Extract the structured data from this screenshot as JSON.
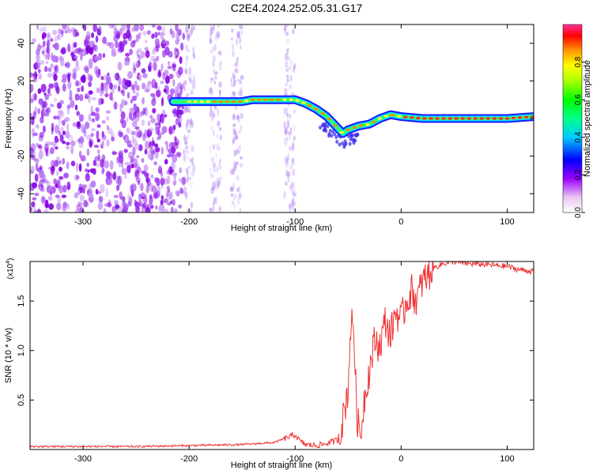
{
  "title": "C2E4.2024.252.05.31.G17",
  "chart_data": [
    {
      "type": "heatmap",
      "xlabel": "Height of straight line (km)",
      "ylabel": "Frequency (Hz)",
      "xlim": [
        -350,
        125
      ],
      "ylim": [
        -50,
        50
      ],
      "xticks": [
        -300,
        -200,
        -100,
        0,
        100
      ],
      "yticks": [
        -40,
        -20,
        0,
        20,
        40
      ],
      "colorbar": {
        "label": "Normalized spectral amplitude",
        "range": [
          0.0,
          1.0
        ],
        "ticks": [
          0.0,
          0.2,
          0.4,
          0.6,
          0.8
        ]
      },
      "ridge": {
        "x": [
          -215,
          -200,
          -180,
          -160,
          -150,
          -140,
          -120,
          -110,
          -100,
          -90,
          -80,
          -70,
          -60,
          -55,
          -50,
          -45,
          -40,
          -30,
          -20,
          -10,
          0,
          20,
          60,
          100,
          125
        ],
        "y": [
          9,
          9,
          9,
          9,
          9,
          10,
          10,
          10,
          10,
          8,
          5,
          1,
          -5,
          -8,
          -6,
          -5,
          -4,
          -3,
          0,
          2,
          1,
          0,
          0,
          0,
          1
        ]
      },
      "noise_region_x": [
        -350,
        -205
      ]
    },
    {
      "type": "line",
      "xlabel": "Height of straight line (km)",
      "ylabel": "SNR (10 * v/v)",
      "scale_label": "(x10",
      "scale_exp": "4",
      "xlim": [
        -350,
        125
      ],
      "ylim": [
        0.0,
        1.9
      ],
      "xticks": [
        -300,
        -200,
        -100,
        0,
        100
      ],
      "yticks": [
        0.5,
        1.0,
        1.5
      ],
      "ytick_labels": [
        "0.5",
        "1.0",
        "1.5"
      ],
      "series": [
        {
          "color": "#ee3333",
          "x": [
            -350,
            -300,
            -250,
            -200,
            -150,
            -120,
            -100,
            -95,
            -90,
            -80,
            -70,
            -60,
            -55,
            -52,
            -50,
            -48,
            -45,
            -42,
            -40,
            -38,
            -35,
            -30,
            -25,
            -20,
            -15,
            -10,
            -5,
            0,
            5,
            10,
            15,
            20,
            25,
            30,
            40,
            50,
            60,
            80,
            100,
            110,
            125
          ],
          "y": [
            0.03,
            0.03,
            0.03,
            0.04,
            0.05,
            0.07,
            0.15,
            0.08,
            0.05,
            0.04,
            0.06,
            0.1,
            0.3,
            0.5,
            0.6,
            1.2,
            1.3,
            0.4,
            0.2,
            0.15,
            0.5,
            0.8,
            1.1,
            1.05,
            1.3,
            1.15,
            1.4,
            1.3,
            1.5,
            1.6,
            1.5,
            1.7,
            1.75,
            1.83,
            1.88,
            1.9,
            1.88,
            1.87,
            1.85,
            1.82,
            1.8
          ]
        }
      ]
    }
  ]
}
